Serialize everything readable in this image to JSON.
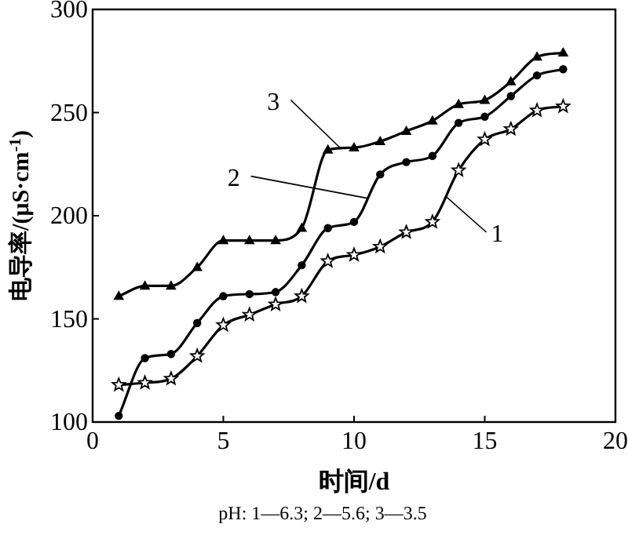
{
  "chart_data": {
    "type": "line",
    "xlabel": "时间/d",
    "ylabel": "电导率/(μS·cm$^{-1}$)",
    "annotations": [
      "pH: 1—6.3; 2—5.6; 3—3.5"
    ],
    "x": [
      1,
      2,
      3,
      4,
      5,
      6,
      7,
      8,
      9,
      10,
      11,
      12,
      13,
      14,
      15,
      16,
      17,
      18
    ],
    "series": [
      {
        "name": "1",
        "color": "#000000",
        "marker": "star",
        "values": [
          118,
          119,
          121,
          132,
          147,
          152,
          157,
          161,
          178,
          181,
          185,
          192,
          197,
          222,
          237,
          242,
          251,
          253
        ]
      },
      {
        "name": "2",
        "color": "#000000",
        "marker": "circle",
        "values": [
          103,
          131,
          133,
          148,
          161,
          162,
          163,
          176,
          194,
          197,
          220,
          226,
          229,
          245,
          248,
          258,
          268,
          271
        ]
      },
      {
        "name": "3",
        "color": "#000000",
        "marker": "triangle",
        "values": [
          161,
          166,
          166,
          175,
          188,
          188,
          188,
          194,
          232,
          233,
          236,
          241,
          246,
          254,
          256,
          265,
          277,
          279
        ]
      }
    ],
    "xlim": [
      0,
      20
    ],
    "xticks": [
      0,
      5,
      10,
      15,
      20
    ],
    "ylim": [
      100,
      300
    ],
    "yticks": [
      100,
      150,
      200,
      250,
      300
    ],
    "grid": false,
    "line_style": "solid"
  }
}
